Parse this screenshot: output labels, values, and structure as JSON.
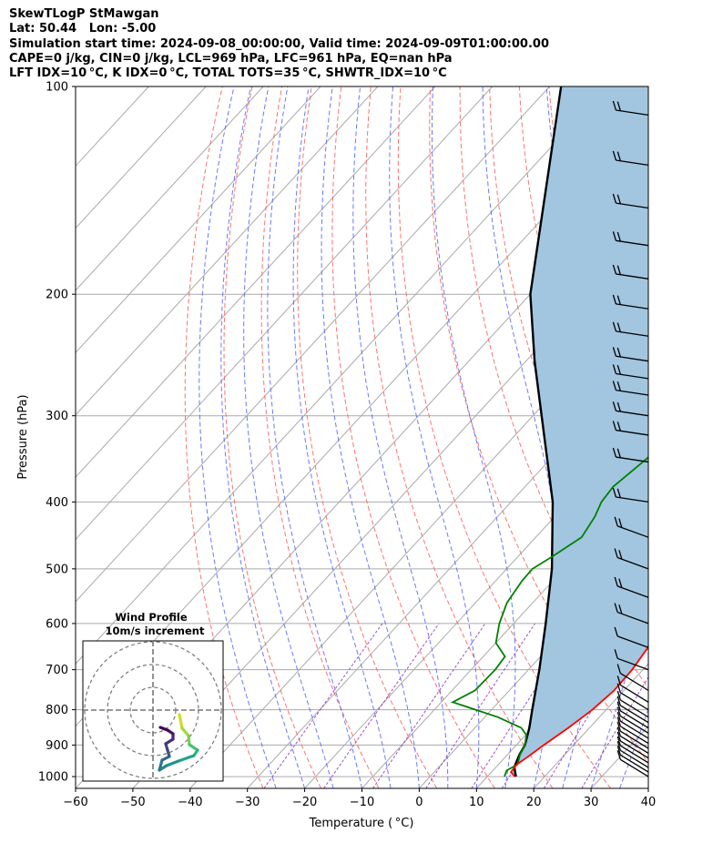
{
  "header": {
    "line1": "SkewTLogP StMawgan",
    "line2": "Lat: 50.44   Lon: -5.00",
    "line3": "Simulation start time: 2024-09-08_00:00:00, Valid time: 2024-09-09T01:00:00.00",
    "line4": "CAPE=0 j/kg, CIN=0 j/kg, LCL=969 hPa, LFC=961 hPa, EQ=nan hPa",
    "line5": "LFT IDX=10 °C, K IDX=0 °C, TOTAL TOTS=35 °C, SHWTR_IDX=10 °C"
  },
  "chart_data": {
    "type": "line",
    "subtype": "skew-t log-p",
    "xlabel": "Temperature ( °C)",
    "ylabel": "Pressure (hPa)",
    "xlim": [
      -60,
      40
    ],
    "ylim": [
      1040,
      100
    ],
    "y_scale": "log",
    "x_ticks": [
      -60,
      -50,
      -40,
      -30,
      -20,
      -10,
      0,
      10,
      20,
      30,
      40
    ],
    "x_tick_labels": [
      "−60",
      "−50",
      "−40",
      "−30",
      "−20",
      "−10",
      "0",
      "10",
      "20",
      "30",
      "40"
    ],
    "y_ticks": [
      1000,
      900,
      800,
      700,
      600,
      500,
      400,
      300,
      200,
      100
    ],
    "y_tick_labels": [
      "1000",
      "900",
      "800",
      "700",
      "600",
      "500",
      "400",
      "300",
      "200",
      "100"
    ],
    "grid": true,
    "colors": {
      "temperature": "#ff0000",
      "dewpoint": "#008000",
      "parcel": "#000000",
      "cape_fill": "#a2c6e0",
      "dry_adiabat": "#ff6060",
      "moist_adiabat": "#5060ff",
      "mixing_ratio": "#9040c0",
      "isotherm": "#aaaaaa"
    },
    "series": [
      {
        "role": "temperature",
        "points": [
          [
            1000,
            14.8
          ],
          [
            985,
            13.4
          ],
          [
            960,
            13.2
          ],
          [
            940,
            13.8
          ],
          [
            900,
            14.8
          ],
          [
            850,
            16.3
          ],
          [
            800,
            17.6
          ],
          [
            750,
            18.3
          ],
          [
            700,
            18.1
          ],
          [
            650,
            17.3
          ],
          [
            600,
            15.3
          ],
          [
            550,
            12.8
          ],
          [
            500,
            9.1
          ],
          [
            450,
            4.8
          ],
          [
            400,
            0.6
          ],
          [
            350,
            -3.5
          ],
          [
            320,
            -7.1
          ],
          [
            300,
            -10.5
          ],
          [
            280,
            -12.7
          ],
          [
            260,
            -14.4
          ],
          [
            240,
            -16.3
          ],
          [
            220,
            -18.8
          ],
          [
            200,
            -22.5
          ],
          [
            180,
            -25.8
          ],
          [
            160,
            -31.8
          ],
          [
            140,
            -35.2
          ],
          [
            120,
            -38.0
          ],
          [
            100,
            -44.5
          ]
        ]
      },
      {
        "role": "dewpoint",
        "points": [
          [
            1000,
            13.0
          ],
          [
            980,
            12.4
          ],
          [
            960,
            13.3
          ],
          [
            930,
            12.2
          ],
          [
            900,
            11.5
          ],
          [
            870,
            10.1
          ],
          [
            850,
            8.1
          ],
          [
            820,
            2.3
          ],
          [
            780,
            -8.0
          ],
          [
            750,
            -6.0
          ],
          [
            700,
            -5.8
          ],
          [
            670,
            -6.2
          ],
          [
            640,
            -10.0
          ],
          [
            600,
            -12.5
          ],
          [
            560,
            -14.5
          ],
          [
            520,
            -15.4
          ],
          [
            500,
            -15.5
          ],
          [
            480,
            -14.0
          ],
          [
            450,
            -12.0
          ],
          [
            420,
            -13.0
          ],
          [
            400,
            -14.2
          ],
          [
            380,
            -14.6
          ],
          [
            360,
            -13.8
          ],
          [
            340,
            -13.0
          ],
          [
            330,
            -11.2
          ],
          [
            300,
            -14.5
          ],
          [
            280,
            -19.2
          ],
          [
            265,
            -22.5
          ],
          [
            250,
            -24.3
          ],
          [
            230,
            -25.1
          ],
          [
            210,
            -26.6
          ],
          [
            190,
            -28.6
          ],
          [
            180,
            -28.6
          ],
          [
            160,
            -33.0
          ],
          [
            148,
            -39.3
          ],
          [
            140,
            -43.8
          ],
          [
            120,
            -48.0
          ],
          [
            100,
            -58.0
          ]
        ]
      },
      {
        "role": "parcel",
        "points": [
          [
            1000,
            15.0
          ],
          [
            969,
            13.2
          ],
          [
            930,
            12.1
          ],
          [
            900,
            11.5
          ],
          [
            850,
            9.5
          ],
          [
            800,
            7.1
          ],
          [
            700,
            1.9
          ],
          [
            600,
            -4.4
          ],
          [
            500,
            -12.1
          ],
          [
            400,
            -22.7
          ],
          [
            300,
            -38.5
          ],
          [
            250,
            -48.5
          ],
          [
            200,
            -60.0
          ],
          [
            100,
            -88.0
          ]
        ]
      }
    ],
    "wind_barbs": {
      "pressures": [
        1000,
        985,
        970,
        955,
        940,
        925,
        910,
        895,
        880,
        865,
        850,
        835,
        820,
        800,
        780,
        750,
        700,
        650,
        600,
        550,
        500,
        450,
        400,
        350,
        320,
        300,
        280,
        265,
        250,
        230,
        210,
        190,
        170,
        150,
        130,
        110
      ]
    },
    "hodograph": {
      "title": "Wind Profile",
      "subtitle": "10m/s increment"
    }
  }
}
